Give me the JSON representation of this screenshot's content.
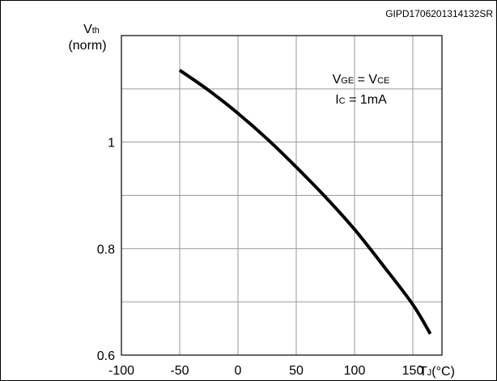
{
  "figure_id": "GIPD1706201314132SR",
  "chart_data": {
    "type": "line",
    "ylabel": {
      "main": "V",
      "sub": "th",
      "unit": "(norm)"
    },
    "xlabel": {
      "main": "T",
      "sub": "J",
      "unit": "(°C)"
    },
    "xlim": [
      -100,
      175
    ],
    "ylim": [
      0.6,
      1.2
    ],
    "grid": true,
    "x_ticks": [
      -100,
      -50,
      0,
      50,
      100,
      150
    ],
    "x_tick_labels": [
      "-100",
      "-50",
      "0",
      "50",
      "100",
      "150"
    ],
    "y_ticks": [
      0.6,
      0.8,
      1.0
    ],
    "y_tick_labels": [
      "0.6",
      "0.8",
      "1"
    ],
    "annotation": [
      {
        "parts": [
          {
            "t": "V",
            "sub": false
          },
          {
            "t": "GE",
            "sub": true
          },
          {
            "t": " = V",
            "sub": false
          },
          {
            "t": "CE",
            "sub": true
          }
        ]
      },
      {
        "parts": [
          {
            "t": "I",
            "sub": false
          },
          {
            "t": "C",
            "sub": true
          },
          {
            "t": " = 1mA",
            "sub": false
          }
        ]
      }
    ],
    "series": [
      {
        "x": [
          -50,
          -25,
          0,
          25,
          50,
          75,
          100,
          125,
          150,
          165
        ],
        "y": [
          1.135,
          1.097,
          1.054,
          1.006,
          0.953,
          0.897,
          0.836,
          0.767,
          0.695,
          0.64
        ]
      }
    ]
  }
}
